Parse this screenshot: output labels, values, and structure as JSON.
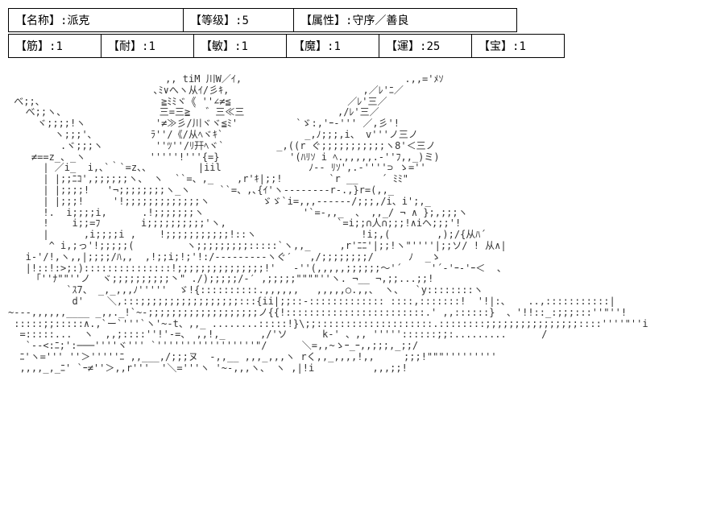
{
  "header": {
    "name_label": "【名称】:",
    "name_value": "派克",
    "level_label": "【等级】:",
    "level_value": "5",
    "align_label": "【属性】:",
    "align_value": "守序／善良"
  },
  "stats": {
    "str_label": "【筋】:",
    "str_value": "1",
    "con_label": "【耐】:",
    "con_value": "1",
    "dex_label": "【敏】:",
    "dex_value": "1",
    "mag_label": "【魔】:",
    "mag_value": "1",
    "luk_label": "【運】:",
    "luk_value": "25",
    "trs_label": "【宝】:",
    "trs_value": "1"
  },
  "ascii": "                           ,, tiM 川W／ｲ,                            .,,='ﾒｿ\n                         ､ﾐ∨へヽ从ｲ/彡ｷ,                       ,／ﾚ'ﾆ／\n べ;;、                    ≧ﾐﾐヾ《 ''∠≠≦                    ／ﾚ'三／\n   べ;;ヽ、                三=三≧｀ ゛三≪三                ,/ﾚ'三／\n     ヾ;;;;!ヽ            '≠≫彡/川ヾヾ≦ﾐ'          `ゞ:,'ｰ-''' ／,彡'!\n        ヽ;;;'､          ﾗ''/《/从ﾍヾｷ`              _,ﾉ;;;,i、 v'''ノ三ノ\n         .ヾ;;;ヽ         ''ﾂ''/ﾘ幵ﾍヾ`         _,((r ぐ;;;;;;;;;;;ヽ8'＜三ノ\n    ≠==z_、_ヽ           '''''!'''{=}            '(ﾊﾘｿ i ﾍ.,,,,,.-''ﾌ,,_)ミ)\n      | ／i_  i,､`｀`=z、、        |iil               ﾉ-- ﾘｿ',.-''''⊃ ゝ=''\n      | |;;ﾆｺ',;;;;;;ヽ、 ヽ  ``=、,_    ,r'ｷ|;;!        `r __    ´ ﾐﾐ\"\n      | |;;;;!   '¬;;;;;;;;ヽ_ヽ     ``=、,､{ｲ'ヽ--------r-.,}r=(,,_\n      | |;;;!     '!;;;;;;;;;;;;;ヽ         ゞゞ`i=,,,------/;;;,/i、i';,_\n      !.  i;;;;i,      .!;;;;;;;ヽ                 '`=-,,_  、 ,,_/ ¬ ∧ };,;;;ヽ\n      !    i;;=ﾌ       i;;;;;;;;;;'ヽ,                   `=i;;∩人∩;;;!∧iヘ;;;'!\n      |      ,i;;;;i ,    !;;;;;;;;;;;!::ヽ                  !i;,(        ,);/{从ﾊ´\n       ^ i,;っ'!;;;;;(         ヽ;;;;;;;;;:::::`ヽ,,_     ,r'ﾆﾆ'|;;!ヽ\"''''|;;ソ/ ! 从∧|\n   i-'/!,ヽ,,|;;;;/ﾊ,,  ,!;;i;!;'!:/---------ヽぐ′   ,/;;;;;;;;/      ﾉ  _ゝ\n   |!::!:>;:):::::::::::::::!;;;;;;;;;;;;;;;!'   -''(,,,,,;;;;;;～'´     '´-'ｰ-'ｰ＜  、\n    「''ﾅ\"\"''ノ  ヾ;;;;;;;;;;丶\" ./);;;;;/‐′ ,;;;;;\"\"\"\"''ヽ. ¬__ ¬,;;...;;!\n          `ｽ7、 _,_,,,ﾉ'''''  ゞ!{::::::::::.,,,,,,   ,,,,,○.,,、 ヽ、  `y::::::::ヽ\n           d'    ＼,:::;;;;;;;;;;;;;;;;;:::{ii|;;::-::::::::::::: ::::,:::::::!  '!|:、   ..,:::::::::::|\n~---,,,,,,____ _,,._!`~-;;;;;;;;;;;;;;;;;;;ノ{{!::::::::::::::::::::::::.' ,,::::::}  、'!!::_:;;;:::''\"''!\n :::::;;:::::∧.,`ー`'''`ヽ'~-t、,,_ ........:::::!}\\;;::::::::::::::::::::.::::::::;;;;;;;;;;;;;;;;::::''''\"''i\n  =:::::...  ヽ  ,,;::::''!'-=、 ,,!,_      ,/'ソ      k-' 、,, '''''::::::;;:.........      /\n   `--<:ﾆ;':───''''ヾ''' `'''''''''''''''''\"/      ＼=,,~ゝｰ_ｰ,,;;;,_;;/\n  ﾆ'ヽ=''' ''＞'''''ﾆ ,,___,/;;;ヌ  -,,__ ,,,_,,,ヽ rく,,_,,,,!,,     ;;;!\"\"\"'''''''''\n  ,,,,_,_ﾆ' `ｰ≠''＞,,r'''  '＼='''ヽ '~-,,,ヽ、 ヽ ,|!i          ,,,;;!"
}
